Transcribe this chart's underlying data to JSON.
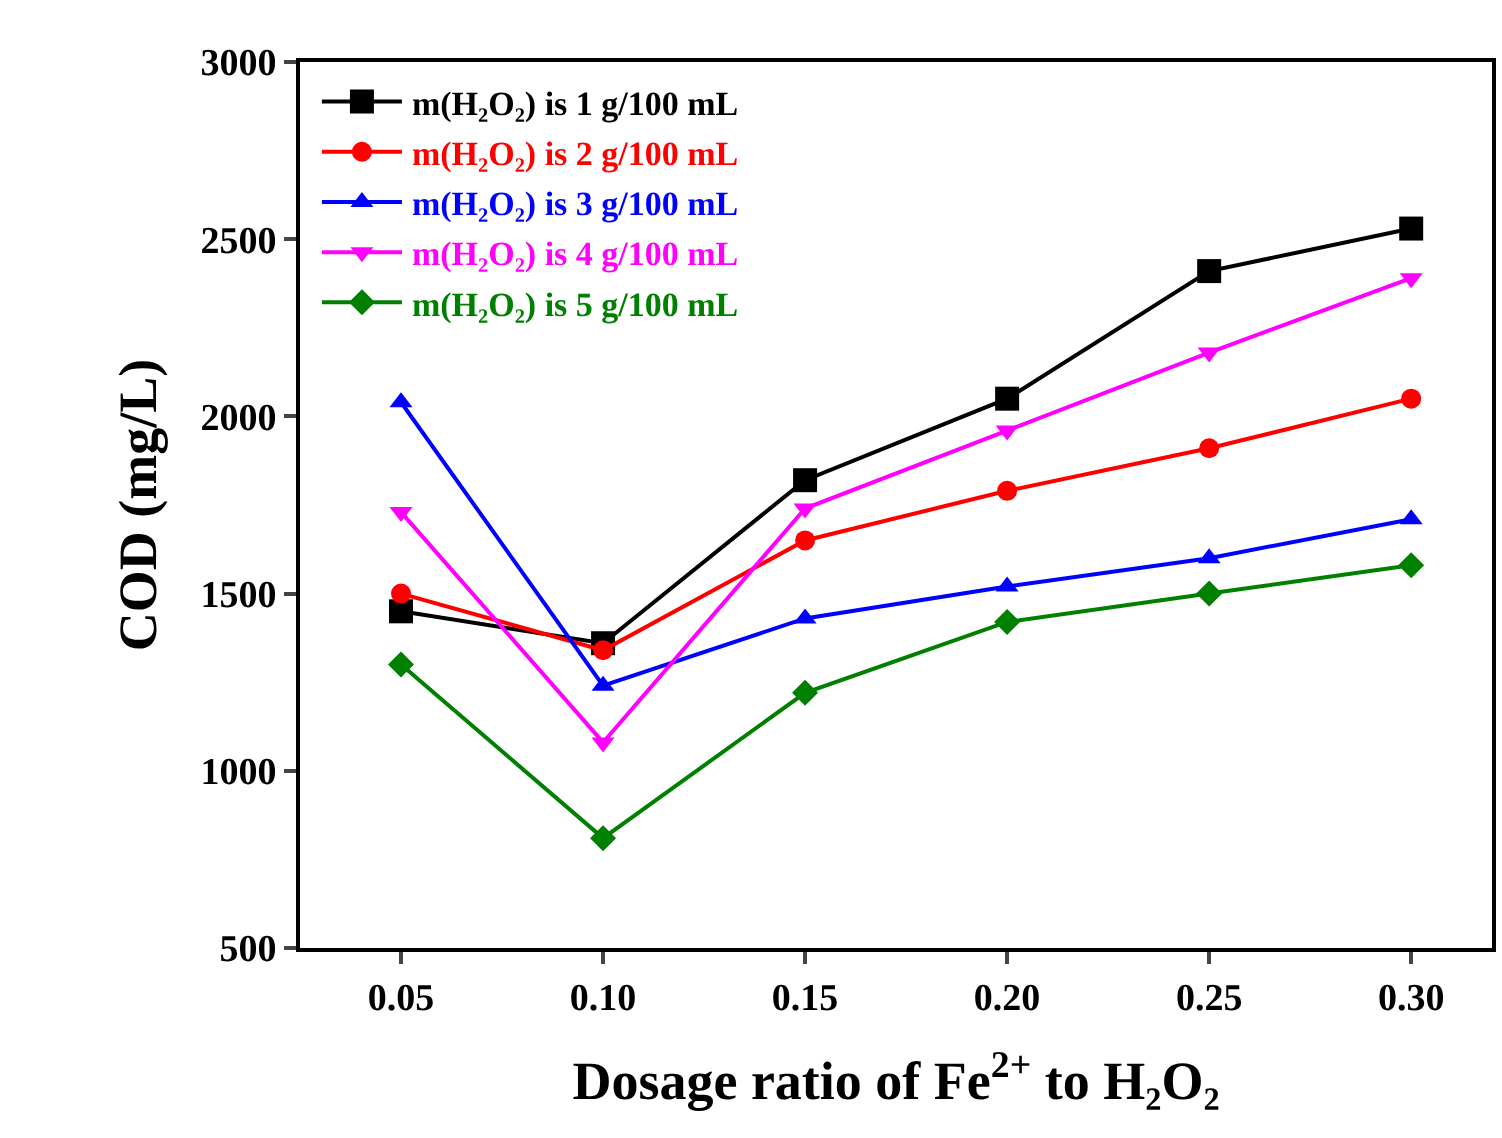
{
  "chart_data": {
    "type": "line",
    "xlabel": "Dosage ratio of Fe$^{2+}$ to H₂O₂",
    "ylabel": "COD (mg/L)",
    "x": [
      0.05,
      0.1,
      0.15,
      0.2,
      0.25,
      0.3
    ],
    "xlim": [
      0.025,
      0.32
    ],
    "xticks": [
      0.05,
      {
        "value": 0.1,
        "label": "0.10"
      },
      0.15,
      {
        "value": 0.2,
        "label": "0.20"
      },
      0.25,
      {
        "value": 0.3,
        "label": "0.30"
      }
    ],
    "ylim": [
      500,
      3000
    ],
    "yticks": [
      500,
      1000,
      1500,
      2000,
      2500,
      3000
    ],
    "grid": false,
    "legend": "top left",
    "line_style": "solid",
    "series": [
      {
        "name": "m(H₂O₂) is 1 g/100 mL",
        "color": "#000000",
        "marker": "square",
        "values": [
          1450,
          1360,
          1820,
          2050,
          2410,
          2530
        ]
      },
      {
        "name": "m(H₂O₂) is 2 g/100 mL",
        "color": "#ff0000",
        "marker": "circle",
        "values": [
          1500,
          1340,
          1650,
          1790,
          1910,
          2050
        ]
      },
      {
        "name": "m(H₂O₂) is 3 g/100 mL",
        "color": "#0000ff",
        "marker": "triangle",
        "values": [
          2040,
          1240,
          1430,
          1520,
          1600,
          1710
        ]
      },
      {
        "name": "m(H₂O₂) is 4 g/100 mL",
        "color": "#ff00ff",
        "marker": "triangle-down",
        "values": [
          1730,
          1080,
          1740,
          1960,
          2180,
          2390
        ]
      },
      {
        "name": "m(H₂O₂) is 5 g/100 mL",
        "color": "#008000",
        "marker": "diamond",
        "values": [
          1300,
          810,
          1220,
          1420,
          1500,
          1580
        ]
      }
    ]
  }
}
